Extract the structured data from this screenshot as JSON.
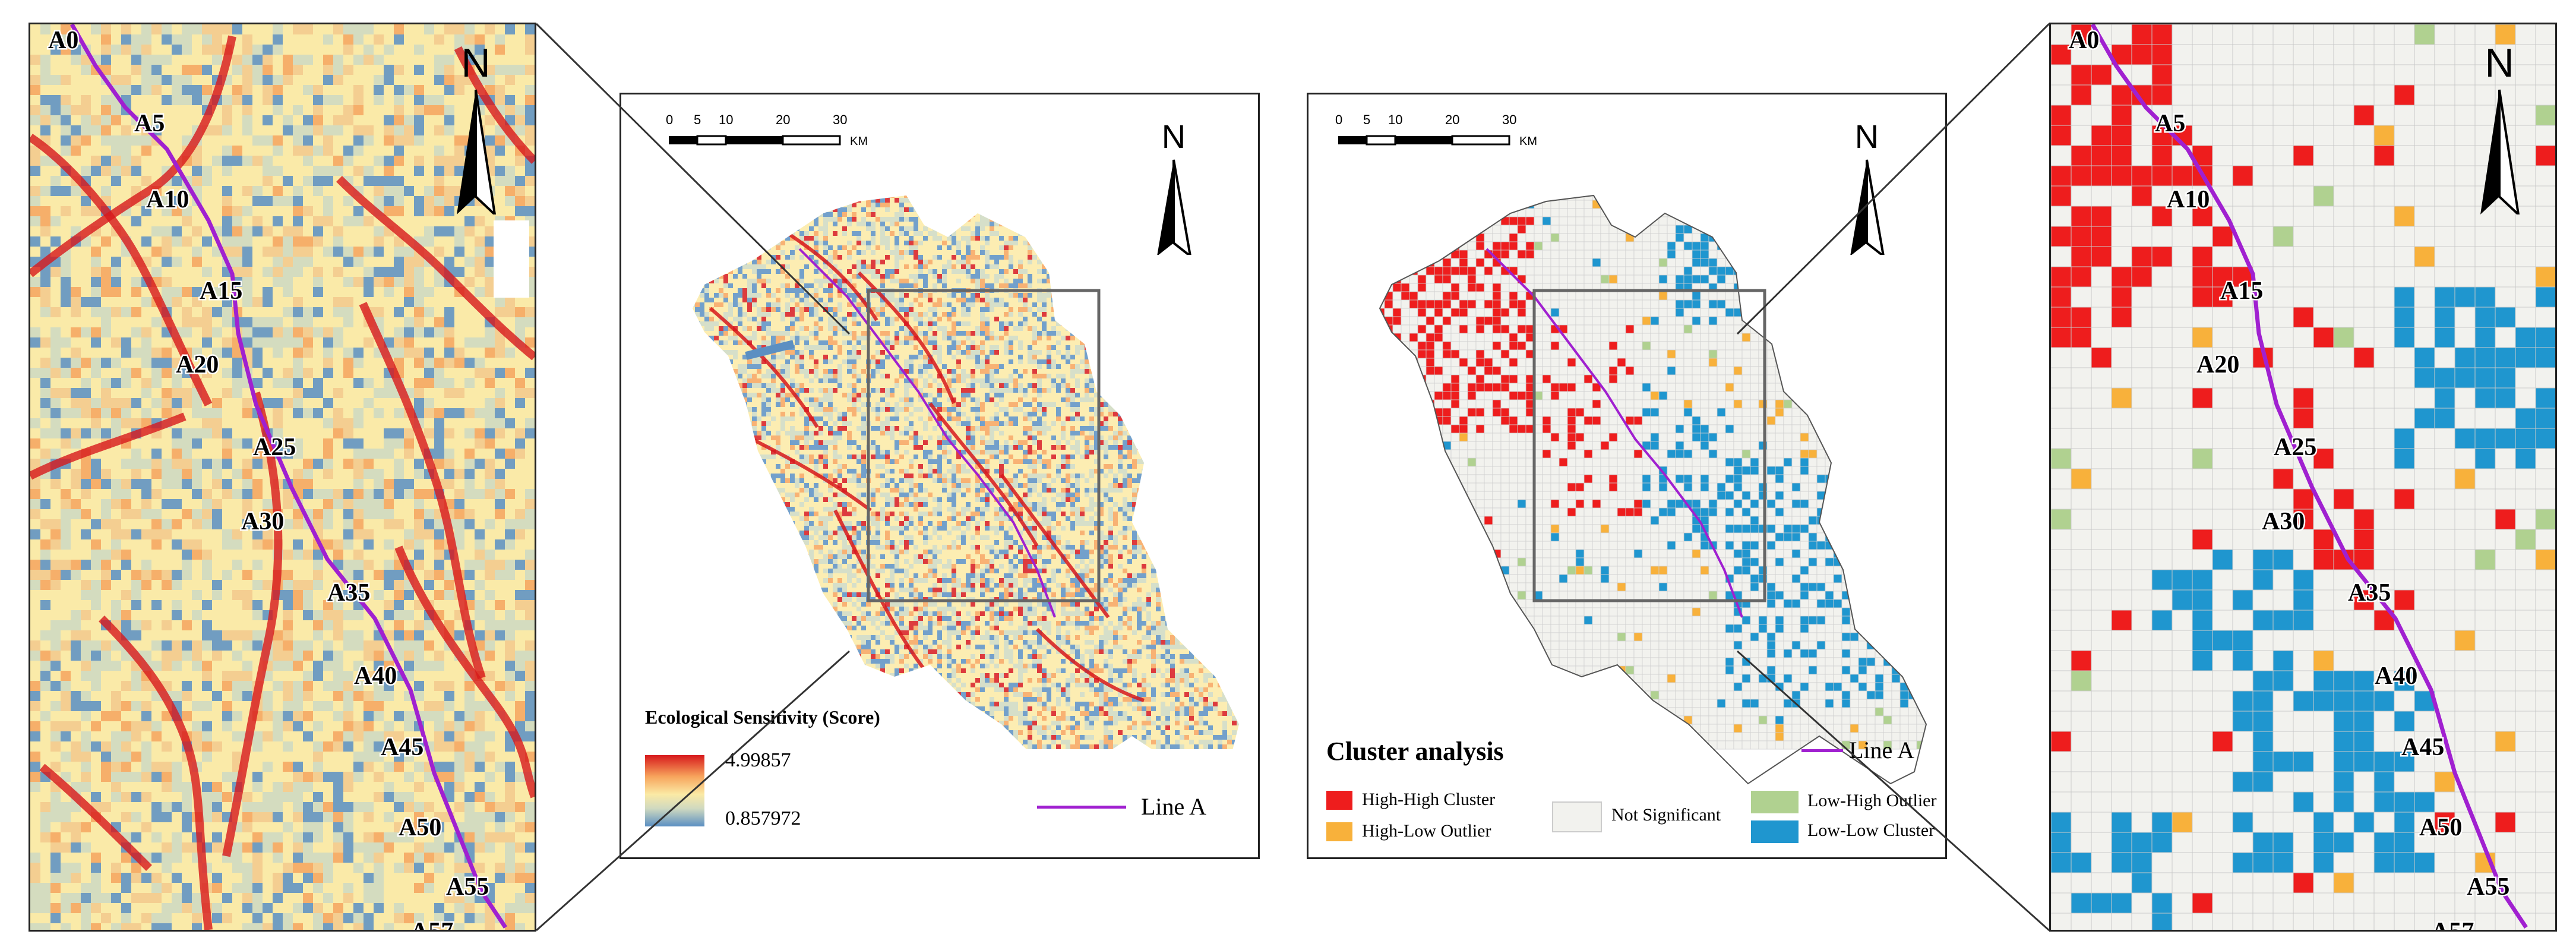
{
  "scalebar": {
    "ticks": [
      "0",
      "5",
      "10",
      "20",
      "30"
    ],
    "unit": "KM"
  },
  "north_label": "N",
  "line_name": "Line A",
  "station_labels": [
    "A0",
    "A5",
    "A10",
    "A15",
    "A20",
    "A25",
    "A30",
    "A35",
    "A40",
    "A45",
    "A50",
    "A55",
    "A57"
  ],
  "sensitivity_legend": {
    "title": "Ecological Sensitivity (Score)",
    "max": "4.99857",
    "min": "0.857972",
    "colors": [
      "#d7191c",
      "#f7a45c",
      "#fbeaa5",
      "#cfd9c0",
      "#5b8fc2"
    ]
  },
  "cluster_legend": {
    "title": "Cluster analysis",
    "items": [
      {
        "label": "High-High Cluster",
        "color": "#ee1d1d"
      },
      {
        "label": "High-Low Outlier",
        "color": "#f8b13b"
      },
      {
        "label": "Not Significant",
        "color": "#f2f2ee"
      },
      {
        "label": "Low-High Outlier",
        "color": "#b0d190"
      },
      {
        "label": "Low-Low Cluster",
        "color": "#1f96cf"
      }
    ]
  },
  "colors": {
    "line": "#a020d0",
    "high_high": "#ee1d1d",
    "high_low": "#f8b13b",
    "not_sig": "#f2f2ee",
    "low_high": "#b0d190",
    "low_low": "#1f96cf"
  }
}
